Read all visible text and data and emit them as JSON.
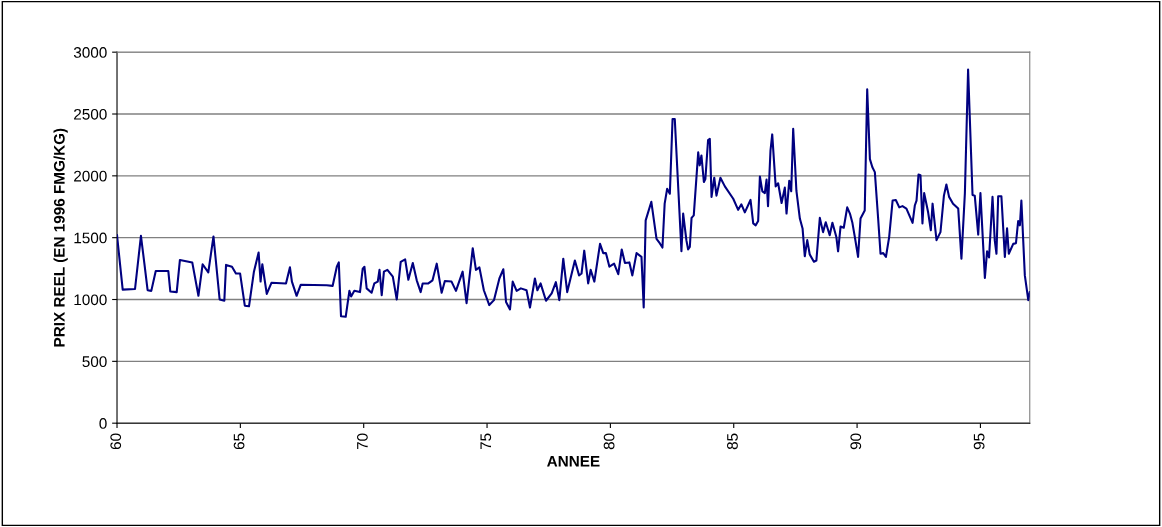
{
  "chart_data": {
    "type": "line",
    "xlabel": "ANNEE",
    "ylabel": "PRIX REEL (EN 1996 FMG/KG)",
    "xlim": [
      60,
      97
    ],
    "ylim": [
      0,
      3000
    ],
    "xticks": [
      60,
      65,
      70,
      75,
      80,
      85,
      90,
      95
    ],
    "yticks": [
      0,
      500,
      1000,
      1500,
      2000,
      2500,
      3000
    ],
    "grid": "y",
    "marker": "none",
    "line_style": "solid",
    "series": [
      {
        "color": "#000080",
        "x": [
          60.0,
          60.23,
          60.73,
          60.97,
          61.11,
          61.24,
          61.39,
          61.57,
          62.08,
          62.16,
          62.42,
          62.55,
          63.05,
          63.3,
          63.47,
          63.7,
          63.91,
          64.16,
          64.35,
          64.42,
          64.66,
          64.82,
          64.99,
          65.18,
          65.35,
          65.55,
          65.74,
          65.82,
          65.89,
          66.07,
          66.26,
          66.85,
          67.01,
          67.09,
          67.28,
          67.45,
          68.5,
          68.74,
          68.91,
          68.99,
          69.08,
          69.27,
          69.42,
          69.49,
          69.62,
          69.85,
          69.96,
          70.03,
          70.12,
          70.32,
          70.43,
          70.57,
          70.64,
          70.73,
          70.82,
          70.96,
          71.18,
          71.34,
          71.5,
          71.68,
          71.81,
          71.99,
          72.15,
          72.31,
          72.39,
          72.62,
          72.79,
          72.96,
          73.16,
          73.29,
          73.56,
          73.74,
          74.01,
          74.17,
          74.42,
          74.55,
          74.69,
          74.87,
          75.09,
          75.28,
          75.5,
          75.66,
          75.77,
          75.93,
          76.04,
          76.2,
          76.37,
          76.6,
          76.74,
          76.94,
          77.04,
          77.17,
          77.39,
          77.62,
          77.79,
          77.93,
          78.09,
          78.25,
          78.56,
          78.73,
          78.83,
          78.94,
          79.1,
          79.2,
          79.35,
          79.58,
          79.71,
          79.82,
          79.96,
          80.15,
          80.32,
          80.46,
          80.59,
          80.77,
          80.89,
          81.06,
          81.26,
          81.35,
          81.43,
          81.66,
          81.87,
          82.0,
          82.11,
          82.2,
          82.3,
          82.41,
          82.52,
          82.61,
          82.88,
          82.95,
          83.08,
          83.15,
          83.22,
          83.29,
          83.38,
          83.56,
          83.62,
          83.69,
          83.79,
          83.85,
          83.96,
          84.03,
          84.1,
          84.21,
          84.3,
          84.46,
          84.64,
          84.98,
          85.18,
          85.31,
          85.45,
          85.68,
          85.79,
          85.89,
          85.99,
          86.06,
          86.16,
          86.26,
          86.33,
          86.39,
          86.49,
          86.56,
          86.7,
          86.8,
          86.94,
          87.07,
          87.14,
          87.25,
          87.33,
          87.41,
          87.54,
          87.68,
          87.79,
          87.88,
          87.98,
          88.08,
          88.25,
          88.35,
          88.49,
          88.62,
          88.73,
          88.89,
          89.0,
          89.16,
          89.23,
          89.33,
          89.46,
          89.6,
          89.71,
          89.81,
          89.91,
          90.04,
          90.14,
          90.31,
          90.41,
          90.52,
          90.62,
          90.72,
          90.85,
          90.95,
          91.06,
          91.17,
          91.3,
          91.44,
          91.57,
          91.71,
          91.84,
          92.0,
          92.25,
          92.34,
          92.41,
          92.49,
          92.57,
          92.65,
          92.72,
          92.88,
          92.99,
          93.06,
          93.22,
          93.38,
          93.52,
          93.62,
          93.73,
          93.89,
          94.1,
          94.23,
          94.37,
          94.5,
          94.68,
          94.77,
          94.91,
          95.0,
          95.18,
          95.27,
          95.35,
          95.49,
          95.58,
          95.65,
          95.72,
          95.85,
          95.99,
          96.08,
          96.15,
          96.33,
          96.44,
          96.53,
          96.6,
          96.66,
          96.8,
          96.94,
          97.0
        ],
        "values": [
          1520,
          1080,
          1085,
          1515,
          1290,
          1075,
          1070,
          1230,
          1230,
          1065,
          1060,
          1320,
          1300,
          1030,
          1285,
          1220,
          1510,
          1000,
          990,
          1280,
          1265,
          1210,
          1210,
          950,
          945,
          1225,
          1380,
          1145,
          1285,
          1045,
          1135,
          1130,
          1260,
          1145,
          1030,
          1120,
          1115,
          1110,
          1265,
          1300,
          865,
          860,
          1070,
          1025,
          1070,
          1060,
          1250,
          1265,
          1090,
          1055,
          1130,
          1145,
          1240,
          1035,
          1225,
          1240,
          1185,
          1000,
          1305,
          1325,
          1160,
          1295,
          1155,
          1060,
          1130,
          1130,
          1155,
          1290,
          1055,
          1150,
          1145,
          1070,
          1225,
          970,
          1415,
          1240,
          1260,
          1075,
          955,
          995,
          1170,
          1245,
          980,
          920,
          1145,
          1070,
          1090,
          1075,
          935,
          1170,
          1075,
          1130,
          990,
          1050,
          1140,
          995,
          1330,
          1060,
          1315,
          1195,
          1210,
          1395,
          1130,
          1240,
          1145,
          1450,
          1375,
          1375,
          1265,
          1290,
          1205,
          1405,
          1295,
          1300,
          1195,
          1375,
          1345,
          935,
          1640,
          1790,
          1490,
          1455,
          1420,
          1775,
          1895,
          1855,
          2460,
          2460,
          1390,
          1695,
          1480,
          1405,
          1425,
          1660,
          1680,
          2190,
          2085,
          2165,
          1950,
          1975,
          2290,
          2300,
          1830,
          1985,
          1840,
          1985,
          1915,
          1815,
          1725,
          1770,
          1705,
          1805,
          1615,
          1600,
          1635,
          1995,
          1875,
          1860,
          1970,
          1755,
          2205,
          2335,
          1915,
          1940,
          1780,
          1905,
          1695,
          1960,
          1875,
          2380,
          1880,
          1655,
          1575,
          1350,
          1480,
          1365,
          1305,
          1315,
          1660,
          1545,
          1625,
          1520,
          1620,
          1505,
          1390,
          1590,
          1580,
          1745,
          1695,
          1620,
          1505,
          1345,
          1655,
          1720,
          2700,
          2135,
          2070,
          2030,
          1665,
          1370,
          1375,
          1345,
          1505,
          1800,
          1805,
          1745,
          1755,
          1735,
          1620,
          1760,
          1800,
          2010,
          2005,
          1615,
          1860,
          1705,
          1560,
          1775,
          1480,
          1545,
          1840,
          1930,
          1830,
          1775,
          1735,
          1330,
          1860,
          2860,
          1845,
          1840,
          1525,
          1860,
          1175,
          1390,
          1340,
          1830,
          1480,
          1370,
          1835,
          1835,
          1345,
          1575,
          1370,
          1450,
          1455,
          1635,
          1600,
          1800,
          1195,
          995,
          1060
        ]
      }
    ]
  }
}
